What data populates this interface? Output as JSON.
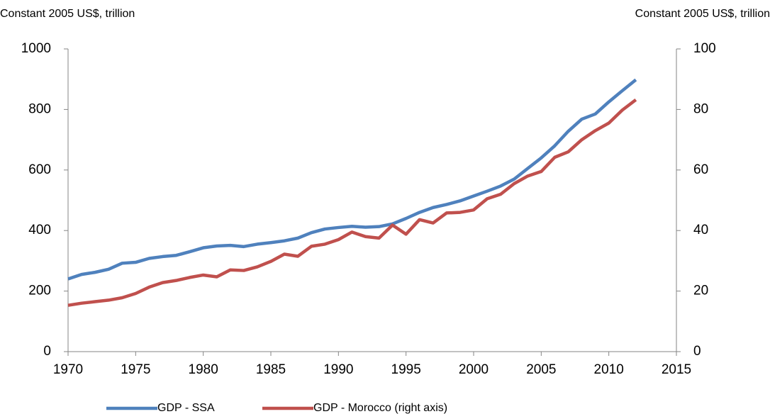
{
  "chart_data": {
    "type": "line",
    "y_label": "Constant 2005 US$, trillion",
    "y2_label": "Constant 2005 US$, trillion",
    "x": [
      1970,
      1971,
      1972,
      1973,
      1974,
      1975,
      1976,
      1977,
      1978,
      1979,
      1980,
      1981,
      1982,
      1983,
      1984,
      1985,
      1986,
      1987,
      1988,
      1989,
      1990,
      1991,
      1992,
      1993,
      1994,
      1995,
      1996,
      1997,
      1998,
      1999,
      2000,
      2001,
      2002,
      2003,
      2004,
      2005,
      2006,
      2007,
      2008,
      2009,
      2010,
      2011,
      2012
    ],
    "series": [
      {
        "name": "GDP - SSA",
        "color": "#4f81bd",
        "axis": "y",
        "values": [
          240,
          255,
          262,
          272,
          292,
          295,
          308,
          314,
          318,
          330,
          343,
          349,
          351,
          347,
          355,
          360,
          366,
          375,
          393,
          405,
          410,
          414,
          411,
          413,
          422,
          440,
          460,
          476,
          486,
          498,
          514,
          530,
          547,
          570,
          605,
          640,
          680,
          728,
          768,
          785,
          825,
          862,
          898
        ]
      },
      {
        "name": "GDP - Morocco (right axis)",
        "color": "#c0504d",
        "axis": "y2",
        "values": [
          15.3,
          16.0,
          16.5,
          17.0,
          17.8,
          19.2,
          21.3,
          22.8,
          23.5,
          24.5,
          25.3,
          24.7,
          27.0,
          26.8,
          28.0,
          29.8,
          32.2,
          31.5,
          34.8,
          35.5,
          37.0,
          39.5,
          38.0,
          37.5,
          41.8,
          38.8,
          43.6,
          42.5,
          45.8,
          46.0,
          46.8,
          50.5,
          52.0,
          55.5,
          58.0,
          59.5,
          64.2,
          66.0,
          70.0,
          73.0,
          75.5,
          79.8,
          83.2
        ]
      }
    ],
    "xlim": [
      1970,
      2015
    ],
    "xticks": [
      1970,
      1975,
      1980,
      1985,
      1990,
      1995,
      2000,
      2005,
      2010,
      2015
    ],
    "ylim": [
      0,
      1000
    ],
    "yticks": [
      0,
      200,
      400,
      600,
      800,
      1000
    ],
    "y2lim": [
      0,
      100
    ],
    "y2ticks": [
      0,
      20,
      40,
      60,
      80,
      100
    ],
    "grid": false,
    "legend": "bottom"
  }
}
